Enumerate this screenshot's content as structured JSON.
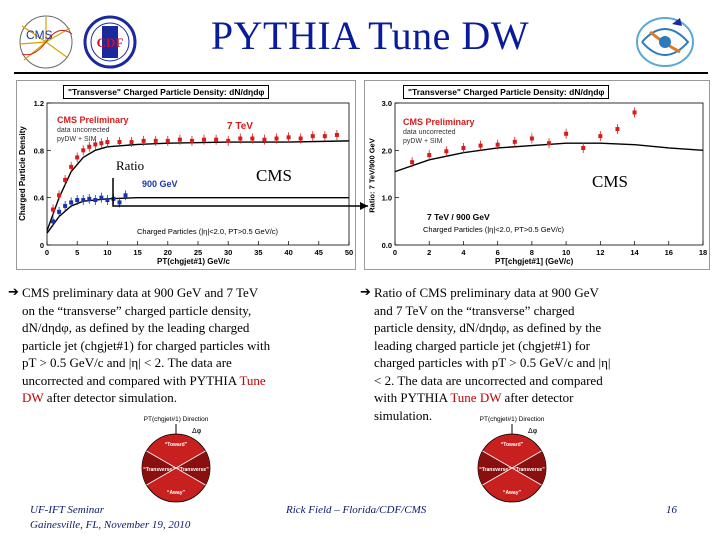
{
  "slide": {
    "title": "PYTHIA Tune DW",
    "logos": {
      "left_1": "CMS",
      "left_2": "CDF"
    }
  },
  "left_plot": {
    "title": "\"Transverse\" Charged Particle Density: dN/dηdφ",
    "legend_prelim": "CMS Preliminary",
    "legend_sub1": "data uncorrected",
    "legend_sub2": "pyDW + SIM",
    "label_7tev": "7 TeV",
    "label_900gev": "900 GeV",
    "ylabel": "Charged Particle Density",
    "xlabel": "PT(chgjet#1) GeV/c",
    "cut_label": "Charged Particles (|η|<2.0, PT>0.5 GeV/c)",
    "yticks": [
      "0",
      "0.4",
      "0.8",
      "1.2"
    ],
    "xticks": [
      "0",
      "5",
      "10",
      "15",
      "20",
      "25",
      "30",
      "35",
      "40",
      "45",
      "50"
    ]
  },
  "right_plot": {
    "title": "\"Transverse\" Charged Particle Density: dN/dηdφ",
    "legend_prelim": "CMS Preliminary",
    "legend_sub1": "data uncorrected",
    "legend_sub2": "pyDW + SIM",
    "ratio_label": "7 TeV / 900 GeV",
    "ylabel": "Ratio: 7 TeV/900 GeV",
    "xlabel": "PT[chgjet#1] (GeV/c)",
    "cut_label": "Charged Particles (|η|<2.0, PT>0.5 GeV/c)",
    "yticks": [
      "0.0",
      "1.0",
      "2.0",
      "3.0"
    ],
    "xticks": [
      "0",
      "2",
      "4",
      "6",
      "8",
      "10",
      "12",
      "14",
      "16",
      "18"
    ]
  },
  "overlays": {
    "ratio": "Ratio",
    "cms_left": "CMS",
    "cms_right": "CMS"
  },
  "bullets": {
    "left": {
      "lines": [
        "CMS preliminary data at 900 GeV and 7 TeV",
        "on the “transverse” charged particle density,",
        "dN/dηdφ, as defined by the leading charged",
        "particle jet (chgjet#1) for charged particles with",
        "pT > 0.5 GeV/c and |η| < 2.  The data are",
        "uncorrected and compared with PYTHIA "
      ],
      "tune_1": "Tune",
      "tune_2": "DW",
      "tail": " after detector simulation."
    },
    "right": {
      "lines": [
        "Ratio of CMS preliminary data at 900 GeV",
        "and 7 TeV on the “transverse” charged",
        "particle density, dN/dηdφ, as defined by the",
        "leading charged particle jet (chgjet#1) for",
        "charged particles with pT > 0.5 GeV/c and |η|",
        "< 2.  The data are uncorrected and compared",
        "with PYTHIA "
      ],
      "tune": "Tune DW",
      "tail_1": " after detector",
      "tail_2": "simulation."
    }
  },
  "diagram": {
    "header": "PT(chgjet#1) Direction",
    "dphi": "Δφ",
    "regions": {
      "toward": "“Toward”",
      "away": "“Away”",
      "trans1": "“Transverse”",
      "trans2": "“Transverse”"
    }
  },
  "footer": {
    "left_line1": "UF-IFT Seminar",
    "left_line2": "Gainesville, FL,  November 19, 2010",
    "center": "Rick Field – Florida/CDF/CMS",
    "page": "16"
  },
  "chart_data": [
    {
      "type": "scatter",
      "title": "\"Transverse\" Charged Particle Density: dN/dηdφ",
      "xlabel": "PT(chgjet#1) GeV/c",
      "ylabel": "Charged Particle Density",
      "xlim": [
        0,
        50
      ],
      "ylim": [
        0,
        1.2
      ],
      "series": [
        {
          "name": "7 TeV",
          "color": "#d81b1b",
          "x": [
            1,
            2,
            3,
            4,
            5,
            6,
            7,
            8,
            9,
            10,
            12,
            14,
            16,
            18,
            20,
            22,
            24,
            26,
            28,
            30,
            32,
            34,
            36,
            38,
            40,
            42,
            44,
            46,
            48
          ],
          "y": [
            0.3,
            0.42,
            0.55,
            0.66,
            0.74,
            0.8,
            0.83,
            0.85,
            0.86,
            0.87,
            0.87,
            0.87,
            0.88,
            0.88,
            0.88,
            0.89,
            0.88,
            0.89,
            0.89,
            0.88,
            0.9,
            0.9,
            0.89,
            0.9,
            0.91,
            0.9,
            0.92,
            0.92,
            0.93
          ]
        },
        {
          "name": "900 GeV",
          "color": "#1a33b0",
          "x": [
            1,
            2,
            3,
            4,
            5,
            6,
            7,
            8,
            9,
            10,
            11,
            12,
            13
          ],
          "y": [
            0.2,
            0.28,
            0.33,
            0.36,
            0.38,
            0.38,
            0.39,
            0.38,
            0.4,
            0.38,
            0.39,
            0.36,
            0.42
          ]
        }
      ],
      "curves": [
        {
          "name": "pyDW + SIM 7 TeV",
          "x": [
            0,
            2,
            4,
            6,
            8,
            10,
            15,
            20,
            30,
            40,
            50
          ],
          "y": [
            0.12,
            0.4,
            0.62,
            0.74,
            0.8,
            0.83,
            0.85,
            0.86,
            0.87,
            0.87,
            0.88
          ]
        },
        {
          "name": "pyDW + SIM 900 GeV",
          "x": [
            0,
            2,
            4,
            6,
            8,
            10,
            15,
            20,
            30,
            40,
            50
          ],
          "y": [
            0.1,
            0.24,
            0.33,
            0.37,
            0.38,
            0.39,
            0.4,
            0.4,
            0.4,
            0.4,
            0.4
          ]
        }
      ]
    },
    {
      "type": "scatter",
      "title": "\"Transverse\" Charged Particle Density: dN/dηdφ",
      "xlabel": "PT[chgjet#1] (GeV/c)",
      "ylabel": "Ratio: 7 TeV/900 GeV",
      "xlim": [
        0,
        18
      ],
      "ylim": [
        0,
        3.0
      ],
      "series": [
        {
          "name": "7 TeV / 900 GeV",
          "color": "#d81b1b",
          "x": [
            1,
            2,
            3,
            4,
            5,
            6,
            7,
            8,
            9,
            10,
            11,
            12,
            13,
            14
          ],
          "y": [
            1.75,
            1.9,
            1.98,
            2.05,
            2.1,
            2.12,
            2.18,
            2.25,
            2.15,
            2.35,
            2.05,
            2.3,
            2.45,
            2.8
          ]
        }
      ],
      "curves": [
        {
          "name": "pyDW + SIM",
          "x": [
            0,
            2,
            4,
            6,
            8,
            10,
            12,
            14,
            16,
            18
          ],
          "y": [
            1.55,
            1.8,
            1.95,
            2.05,
            2.1,
            2.15,
            2.15,
            2.12,
            2.05,
            2.0
          ]
        }
      ]
    }
  ]
}
